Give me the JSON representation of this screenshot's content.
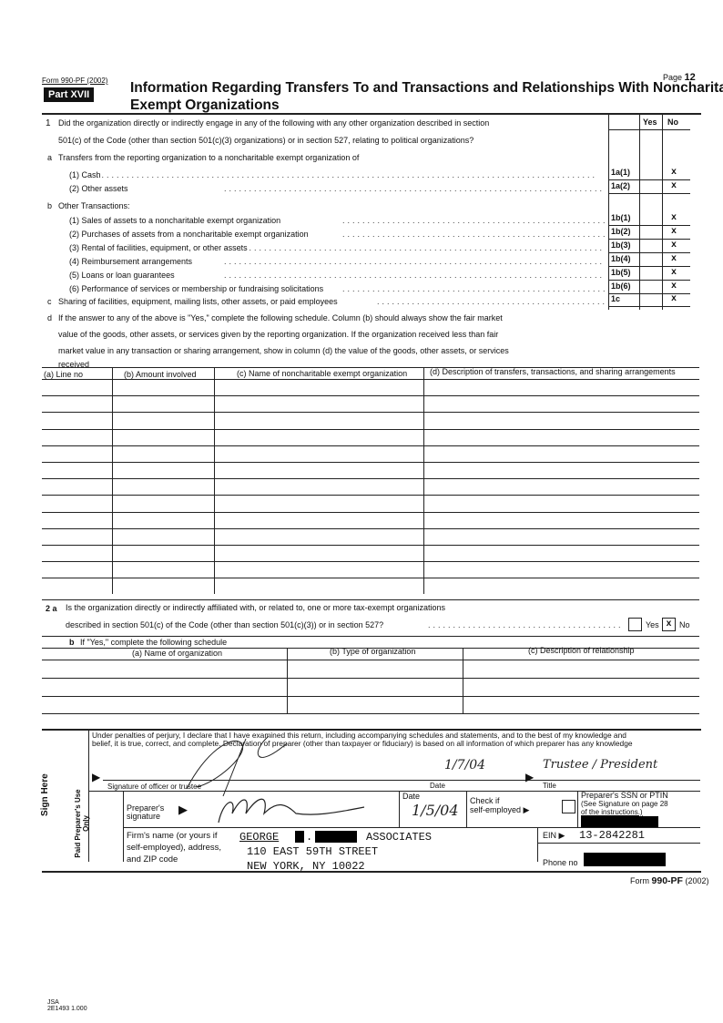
{
  "header": {
    "form_id": "Form 990-PF (2002)",
    "page_label": "Page",
    "page_number": "12",
    "part": "Part XVII",
    "title_line1": "Information Regarding Transfers To and Transactions and Relationships With Noncharitable",
    "title_line2": "Exempt Organizations"
  },
  "question1": {
    "yes_header": "Yes",
    "no_header": "No",
    "num": "1",
    "text1": "Did the organization directly or indirectly engage in any of the following with any other organization described in section",
    "text2": "501(c) of the Code (other than section 501(c)(3) organizations) or in section 527, relating to political organizations?",
    "a_label": "a",
    "a_text": "Transfers from the reporting organization to a noncharitable exempt organization of",
    "b_label": "b",
    "b_text": "Other Transactions:",
    "c_label": "c",
    "d_label": "d",
    "d_text1": "If the answer to any of the above is \"Yes,\" complete the following schedule. Column (b) should always show the fair market",
    "d_text2": "value of the goods, other assets, or services given by the reporting organization. If the organization received less than fair",
    "d_text3": "market value in any transaction or sharing arrangement, show in column (d) the value of the goods, other assets, or services",
    "d_text4": "received",
    "lines": [
      {
        "text": "(1) Cash",
        "code": "1a(1)",
        "yes": "",
        "no": "x"
      },
      {
        "text": "(2) Other assets",
        "code": "1a(2)",
        "yes": "",
        "no": "x"
      },
      {
        "text": "(1) Sales of assets to a noncharitable exempt organization",
        "code": "1b(1)",
        "yes": "",
        "no": "x"
      },
      {
        "text": "(2) Purchases of assets from a noncharitable exempt organization",
        "code": "1b(2)",
        "yes": "",
        "no": "x"
      },
      {
        "text": "(3) Rental of facilities, equipment, or other assets",
        "code": "1b(3)",
        "yes": "",
        "no": "x"
      },
      {
        "text": "(4) Reimbursement arrangements",
        "code": "1b(4)",
        "yes": "",
        "no": "x"
      },
      {
        "text": "(5) Loans or loan guarantees",
        "code": "1b(5)",
        "yes": "",
        "no": "x"
      },
      {
        "text": "(6) Performance of services or membership or fundraising solicitations",
        "code": "1b(6)",
        "yes": "",
        "no": "x"
      },
      {
        "text": "Sharing of facilities, equipment, mailing lists, other assets, or paid employees",
        "code": "1c",
        "yes": "",
        "no": "x"
      }
    ]
  },
  "table1": {
    "columns": [
      "(a) Line no",
      "(b) Amount involved",
      "(c) Name of noncharitable exempt organization",
      "(d) Description of transfers, transactions, and sharing arrangements"
    ]
  },
  "question2": {
    "a_label": "2 a",
    "a_text1": "Is the organization directly or indirectly affiliated with, or related to, one or more tax-exempt organizations",
    "a_text2": "described in section 501(c) of the Code (other than section 501(c)(3)) or in section 527?",
    "yes_label": "Yes",
    "no_label": "No",
    "answer_yes": "",
    "answer_no": "x",
    "b_label": "b",
    "b_text": "If \"Yes,\" complete the following schedule",
    "columns": [
      "(a) Name of organization",
      "(b) Type of organization",
      "(c) Description of relationship"
    ]
  },
  "signature": {
    "penalty1": "Under penalties of perjury, I declare that I have examined this return, including accompanying schedules and statements, and to the best of my knowledge and",
    "penalty2": "belief, it is true, correct, and complete. Declaration of preparer (other than taxpayer or fiduciary) is based on all information of which preparer has any knowledge",
    "sign_here": "Sign Here",
    "officer_label": "Signature of officer or trustee",
    "date_label": "Date",
    "officer_date": "1/7/04",
    "title_label": "Title",
    "title_value": "Trustee / President",
    "paid_preparer": "Paid Preparer's Use Only",
    "preparer_sig_label1": "Preparer's",
    "preparer_sig_label2": "signature",
    "prep_date_label": "Date",
    "prep_date": "1/5/04",
    "check_label1": "Check if",
    "check_label2": "self-employed",
    "ssn_label1": "Preparer's SSN or PTIN",
    "ssn_label2": "(See Signature on page 28",
    "ssn_label3": "of the instructions.)",
    "firm_label1": "Firm's name (or yours if",
    "firm_label2": "self-employed), address,",
    "firm_label3": "and ZIP code",
    "firm_name_1": "GEORGE",
    "firm_name_2": "ASSOCIATES",
    "firm_address": "110 EAST 59TH STREET",
    "firm_city": "NEW YORK, NY  10022",
    "ein_label": "EIN",
    "ein_value": "13-2842281",
    "phone_label": "Phone no"
  },
  "footer": {
    "form_id_prefix": "Form",
    "form_id_bold": "990-PF",
    "form_year": "(2002)",
    "jsa1": "JSA",
    "jsa2": "2E1493 1.000"
  }
}
